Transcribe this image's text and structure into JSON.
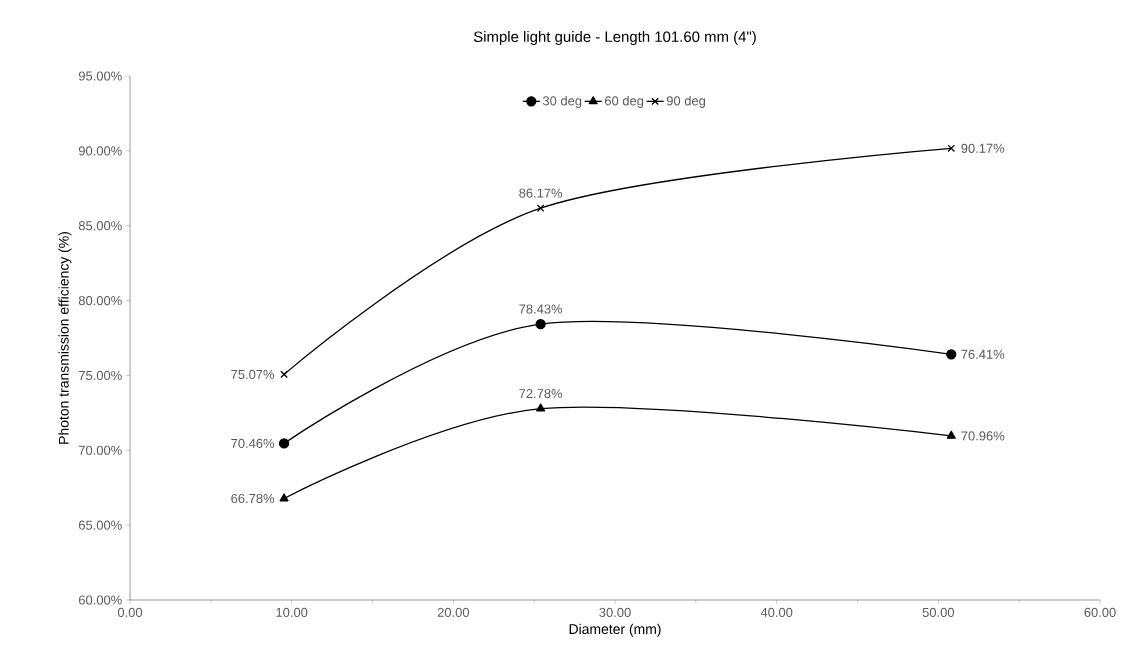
{
  "chart_data": {
    "type": "line",
    "title": "Simple light guide - Length 101.60 mm (4\")",
    "xlabel": "Diameter (mm)",
    "ylabel": "Photon transmission efficiency (%)",
    "x": [
      9.53,
      25.4,
      50.8
    ],
    "series": [
      {
        "name": "30 deg",
        "color": "#000000",
        "marker": "circle",
        "values": [
          70.46,
          78.43,
          76.41
        ],
        "value_labels": [
          "70.46%",
          "78.43%",
          "76.41%"
        ]
      },
      {
        "name": "60 deg",
        "color": "#000000",
        "marker": "triangle",
        "values": [
          66.78,
          72.78,
          70.96
        ],
        "value_labels": [
          "66.78%",
          "72.78%",
          "70.96%"
        ]
      },
      {
        "name": "90 deg",
        "color": "#000000",
        "marker": "cross",
        "values": [
          75.07,
          86.17,
          90.17
        ],
        "value_labels": [
          "75.07%",
          "86.17%",
          "90.17%"
        ]
      }
    ],
    "xlim": [
      0,
      60
    ],
    "xticks": [
      {
        "value": 0,
        "label": "0.00"
      },
      {
        "value": 10,
        "label": "10.00"
      },
      {
        "value": 20,
        "label": "20.00"
      },
      {
        "value": 30,
        "label": "30.00"
      },
      {
        "value": 40,
        "label": "40.00"
      },
      {
        "value": 50,
        "label": "50.00"
      },
      {
        "value": 60,
        "label": "60.00"
      }
    ],
    "ylim": [
      60,
      95
    ],
    "yticks": [
      {
        "value": 60,
        "label": "60.00%"
      },
      {
        "value": 65,
        "label": "65.00%"
      },
      {
        "value": 70,
        "label": "70.00%"
      },
      {
        "value": 75,
        "label": "75.00%"
      },
      {
        "value": 80,
        "label": "80.00%"
      },
      {
        "value": 85,
        "label": "85.00%"
      },
      {
        "value": 90,
        "label": "90.00%"
      },
      {
        "value": 95,
        "label": "95.00%"
      }
    ],
    "grid": false,
    "legend": "top",
    "line_style": "solid"
  }
}
